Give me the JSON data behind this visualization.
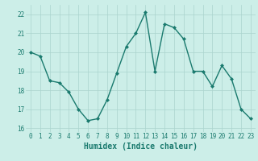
{
  "xlabel": "Humidex (Indice chaleur)",
  "x": [
    0,
    1,
    2,
    3,
    4,
    5,
    6,
    7,
    8,
    9,
    10,
    11,
    12,
    13,
    14,
    15,
    16,
    17,
    18,
    19,
    20,
    21,
    22,
    23
  ],
  "y": [
    20.0,
    19.8,
    18.5,
    18.4,
    17.9,
    17.0,
    16.4,
    16.5,
    17.5,
    18.9,
    20.3,
    21.0,
    22.1,
    19.0,
    21.5,
    21.3,
    20.7,
    19.0,
    19.0,
    18.2,
    19.3,
    18.6,
    17.0,
    16.5
  ],
  "line_color": "#1a7a6e",
  "marker": "D",
  "marker_size": 2.0,
  "line_width": 1.0,
  "bg_color": "#cceee8",
  "grid_color": "#aad4ce",
  "ylim": [
    15.8,
    22.5
  ],
  "yticks": [
    16,
    17,
    18,
    19,
    20,
    21,
    22
  ],
  "xlim": [
    -0.5,
    23.5
  ],
  "xticks": [
    0,
    1,
    2,
    3,
    4,
    5,
    6,
    7,
    8,
    9,
    10,
    11,
    12,
    13,
    14,
    15,
    16,
    17,
    18,
    19,
    20,
    21,
    22,
    23
  ],
  "tick_fontsize": 5.5,
  "label_fontsize": 7.0,
  "tick_color": "#1a7a6e",
  "label_color": "#1a7a6e"
}
